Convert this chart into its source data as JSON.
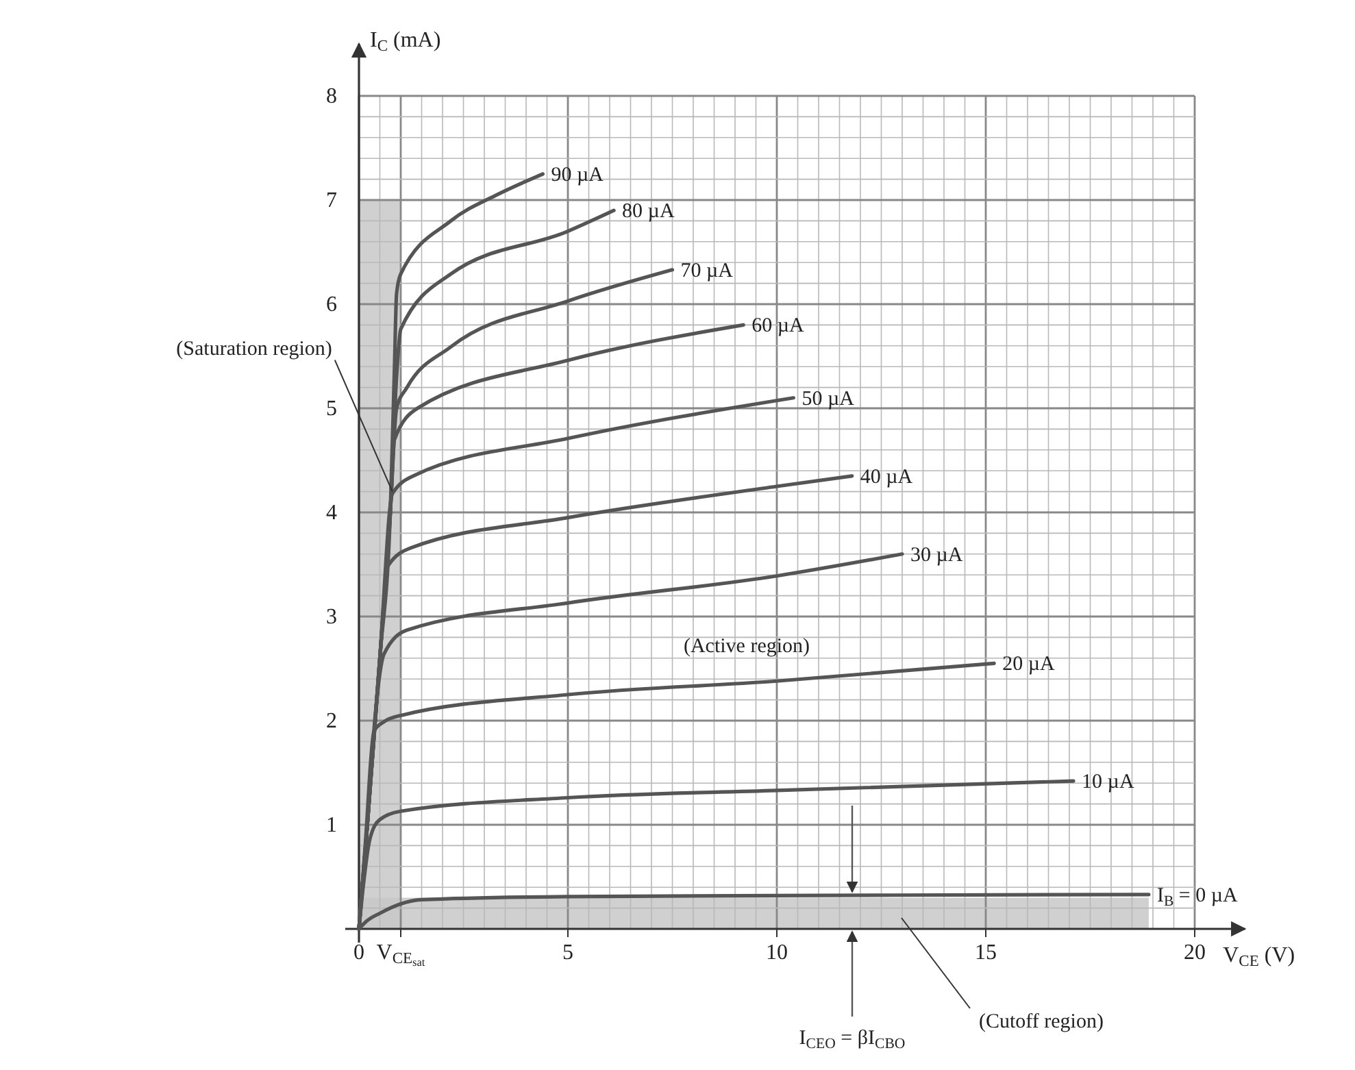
{
  "chart_data": {
    "type": "line",
    "ylabel": "I$_{C}$ (mA)",
    "xlabel": "V$_{CE}$ (V)",
    "xlim": [
      0,
      21.2
    ],
    "ylim": [
      0,
      8.5
    ],
    "grid": true,
    "legend": false,
    "xticks": [
      0,
      {
        "value": 0.5,
        "label": null
      },
      {
        "value": 1,
        "label": "V$_{CE}$$_{sat}$"
      },
      {
        "value": 1.5,
        "label": null
      },
      {
        "value": 2,
        "label": null
      },
      {
        "value": 2.5,
        "label": null
      },
      {
        "value": 3,
        "label": null
      },
      {
        "value": 3.5,
        "label": null
      },
      {
        "value": 4,
        "label": null
      },
      {
        "value": 4.5,
        "label": null
      },
      5,
      {
        "value": 5.5,
        "label": null
      },
      {
        "value": 6,
        "label": null
      },
      {
        "value": 6.5,
        "label": null
      },
      {
        "value": 7,
        "label": null
      },
      {
        "value": 7.5,
        "label": null
      },
      {
        "value": 8,
        "label": null
      },
      {
        "value": 8.5,
        "label": null
      },
      {
        "value": 9,
        "label": null
      },
      {
        "value": 9.5,
        "label": null
      },
      10,
      {
        "value": 10.5,
        "label": null
      },
      {
        "value": 11,
        "label": null
      },
      {
        "value": 11.5,
        "label": null
      },
      {
        "value": 12,
        "label": null
      },
      {
        "value": 12.5,
        "label": null
      },
      {
        "value": 13,
        "label": null
      },
      {
        "value": 13.5,
        "label": null
      },
      {
        "value": 14,
        "label": null
      },
      {
        "value": 14.5,
        "label": null
      },
      15,
      {
        "value": 15.5,
        "label": null
      },
      {
        "value": 16,
        "label": null
      },
      {
        "value": 16.5,
        "label": null
      },
      {
        "value": 17,
        "label": null
      },
      {
        "value": 17.5,
        "label": null
      },
      {
        "value": 18,
        "label": null
      },
      {
        "value": 18.5,
        "label": null
      },
      {
        "value": 19,
        "label": null
      },
      {
        "value": 19.5,
        "label": null
      },
      20
    ],
    "yticks": [
      {
        "value": 0,
        "label": null
      },
      {
        "value": 0.2,
        "label": null
      },
      {
        "value": 0.4,
        "label": null
      },
      {
        "value": 0.6,
        "label": null
      },
      {
        "value": 0.8,
        "label": null
      },
      1,
      {
        "value": 1.2,
        "label": null
      },
      {
        "value": 1.4,
        "label": null
      },
      {
        "value": 1.6,
        "label": null
      },
      {
        "value": 1.8,
        "label": null
      },
      2,
      {
        "value": 2.2,
        "label": null
      },
      {
        "value": 2.4,
        "label": null
      },
      {
        "value": 2.6,
        "label": null
      },
      {
        "value": 2.8,
        "label": null
      },
      3,
      {
        "value": 3.2,
        "label": null
      },
      {
        "value": 3.4,
        "label": null
      },
      {
        "value": 3.6,
        "label": null
      },
      {
        "value": 3.8,
        "label": null
      },
      4,
      {
        "value": 4.2,
        "label": null
      },
      {
        "value": 4.4,
        "label": null
      },
      {
        "value": 4.6,
        "label": null
      },
      {
        "value": 4.8,
        "label": null
      },
      5,
      {
        "value": 5.2,
        "label": null
      },
      {
        "value": 5.4,
        "label": null
      },
      {
        "value": 5.6,
        "label": null
      },
      {
        "value": 5.8,
        "label": null
      },
      6,
      {
        "value": 6.2,
        "label": null
      },
      {
        "value": 6.4,
        "label": null
      },
      {
        "value": 6.6,
        "label": null
      },
      {
        "value": 6.8,
        "label": null
      },
      7,
      {
        "value": 7.2,
        "label": null
      },
      {
        "value": 7.4,
        "label": null
      },
      {
        "value": 7.6,
        "label": null
      },
      {
        "value": 7.8,
        "label": null
      },
      8
    ],
    "series": [
      {
        "type": "area",
        "color": "#c8c8c8",
        "x": [
          0,
          1
        ],
        "values": [
          7,
          7
        ]
      },
      {
        "type": "area",
        "color": "#c8c8c8",
        "x": [
          0,
          18.9
        ],
        "values": [
          0.3,
          0.3
        ]
      },
      {
        "name": "I$_{B}$ = 0 µA",
        "color": "#555555",
        "x": [
          0,
          0.2,
          0.5,
          1,
          1.5,
          5,
          10,
          18.9
        ],
        "values": [
          0,
          0.08,
          0.15,
          0.24,
          0.28,
          0.31,
          0.32,
          0.33
        ]
      },
      {
        "name": "10 µA",
        "color": "#555555",
        "x": [
          0,
          0.1,
          0.26,
          0.5,
          1,
          5,
          10,
          17.1
        ],
        "values": [
          0,
          0.4,
          0.86,
          1.05,
          1.13,
          1.26,
          1.33,
          1.42
        ]
      },
      {
        "name": "20 µA",
        "color": "#555555",
        "x": [
          0,
          0.15,
          0.36,
          0.6,
          1,
          5,
          10,
          15.2
        ],
        "values": [
          0,
          0.8,
          1.9,
          1.99,
          2.05,
          2.25,
          2.38,
          2.55
        ]
      },
      {
        "name": "30 µA",
        "color": "#555555",
        "x": [
          0,
          0.2,
          0.4,
          0.6,
          1.15,
          5,
          10,
          13
        ],
        "values": [
          0,
          1,
          2.1,
          2.64,
          2.87,
          3.13,
          3.39,
          3.6
        ]
      },
      {
        "name": "40 µA",
        "color": "#555555",
        "x": [
          0,
          0.2,
          0.45,
          0.7,
          1.25,
          5,
          10,
          11.8
        ],
        "values": [
          0,
          1,
          2.3,
          3.49,
          3.66,
          3.95,
          4.25,
          4.35
        ]
      },
      {
        "name": "50 µA",
        "color": "#555555",
        "x": [
          0,
          0.2,
          0.5,
          0.8,
          1.35,
          5,
          10.4
        ],
        "values": [
          0,
          1,
          2.6,
          4.18,
          4.36,
          4.71,
          5.1
        ]
      },
      {
        "name": "60 µA",
        "color": "#555555",
        "x": [
          0,
          0.2,
          0.5,
          0.75,
          0.85,
          1.4,
          5,
          9.2
        ],
        "values": [
          0,
          1,
          2.6,
          4,
          4.7,
          5,
          5.46,
          5.8
        ]
      },
      {
        "name": "70 µA",
        "color": "#555555",
        "x": [
          0,
          0.2,
          0.5,
          0.75,
          0.9,
          1.15,
          2.2,
          5,
          7.5
        ],
        "values": [
          0,
          1,
          2.6,
          4,
          5,
          5.2,
          5.59,
          6.03,
          6.33
        ]
      },
      {
        "name": "80 µA",
        "color": "#555555",
        "x": [
          0,
          0.2,
          0.5,
          0.75,
          0.9,
          1,
          2.2,
          5,
          6.1
        ],
        "values": [
          0,
          1,
          2.6,
          4,
          5.3,
          5.76,
          6.29,
          6.7,
          6.9
        ]
      },
      {
        "name": "90 µA",
        "color": "#555555",
        "x": [
          0,
          0.2,
          0.5,
          0.75,
          0.85,
          0.9,
          1,
          2.2,
          3.3,
          4.4
        ],
        "values": [
          0,
          1,
          2.6,
          4,
          5.4,
          6.1,
          6.29,
          6.8,
          7.05,
          7.25
        ]
      }
    ],
    "annotations": [
      {
        "text": "(Saturation region)",
        "x": 0.8,
        "y": 4.2
      },
      "(Active region)",
      "(Cutoff region)",
      "I$_{CEO}$ = βI$_{CBO}$"
    ]
  }
}
